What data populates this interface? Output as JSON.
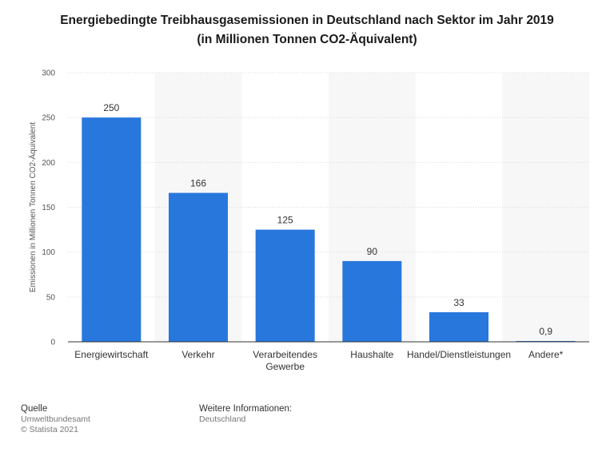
{
  "title_line1": "Energiebedingte Treibhausgasemissionen in Deutschland nach Sektor im Jahr 2019",
  "title_line2": "(in Millionen Tonnen CO2-Äquivalent)",
  "footer": {
    "source_heading": "Quelle",
    "source_name": "Umweltbundesamt",
    "copyright": "© Statista 2021",
    "info_heading": "Weitere Informationen:",
    "info_value": "Deutschland"
  },
  "colors": {
    "bar": "#2877dd",
    "band": "#f7f7f7",
    "grid": "#d9d9d9"
  },
  "chart_data": {
    "type": "bar",
    "title": "Energiebedingte Treibhausgasemissionen in Deutschland nach Sektor im Jahr 2019 (in Millionen Tonnen CO2-Äquivalent)",
    "ylabel": "Emissionen in Millionen Tonnen CO2-Äquivalent",
    "xlabel": "",
    "categories": [
      [
        "Energiewirtschaft"
      ],
      [
        "Verkehr"
      ],
      [
        "Verarbeitendes",
        "Gewerbe"
      ],
      [
        "Haushalte"
      ],
      [
        "Handel/Dienstleistungen"
      ],
      [
        "Andere*"
      ]
    ],
    "values": [
      250,
      166,
      125,
      90,
      33,
      0.9
    ],
    "value_labels": [
      "250",
      "166",
      "125",
      "90",
      "33",
      "0,9"
    ],
    "ylim": [
      0,
      300
    ],
    "yticks": [
      0,
      50,
      100,
      150,
      200,
      250,
      300
    ],
    "grid": true
  }
}
